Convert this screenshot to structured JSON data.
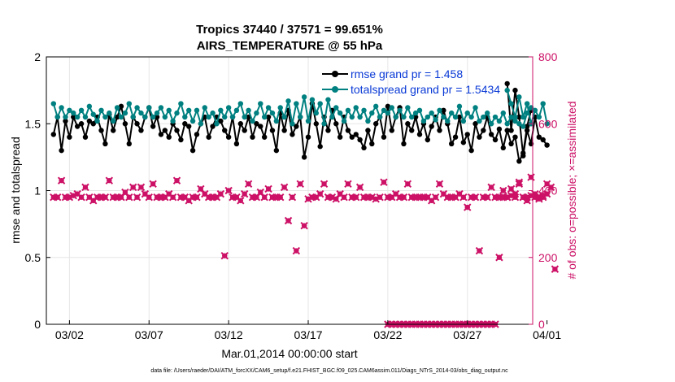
{
  "chart_data": {
    "type": "line",
    "title": "Tropics 37440 / 37571 = 99.651%",
    "subtitle": "AIRS_TEMPERATURE @ 55 hPa",
    "xlabel": "Mar.01,2014 00:00:00 start",
    "ylabel": "rmse and totalspread",
    "y2label": "# of obs: o=possible; ×=assimilated",
    "ylim": [
      0,
      2
    ],
    "y2lim": [
      0,
      800
    ],
    "xlim": [
      0.55,
      31.1
    ],
    "yticks": [
      0,
      0.5,
      1,
      1.5,
      2
    ],
    "yticklabels": [
      "0",
      "0.5",
      "1",
      "1.5",
      "2"
    ],
    "y2ticks": [
      0,
      200,
      400,
      600,
      800
    ],
    "y2ticklabels": [
      "0",
      "200",
      "400",
      "600",
      "800"
    ],
    "xticks": [
      2,
      7,
      12,
      17,
      22,
      27,
      32
    ],
    "xticklabels": [
      "03/02",
      "03/07",
      "03/12",
      "03/17",
      "03/22",
      "03/27",
      "04/01"
    ],
    "grid": true,
    "legend_position": "top-right",
    "footer": "data file: /Users/raeder/DAI/ATM_forcXX/CAM6_setup/f.e21.FHIST_BGC.f09_025.CAM6assim.011/Diags_NTrS_2014-03/obs_diag_output.nc",
    "colors": {
      "rmse": "#000000",
      "spread": "#008080",
      "obs": "#cc1166",
      "grid": "#e6e6e6",
      "legend_text": "#0a3ad6"
    },
    "step_days": 0.25,
    "series": [
      {
        "name": "rmse grand pr = 1.458",
        "x_start": 1.0,
        "values": [
          1.42,
          1.55,
          1.3,
          1.52,
          1.4,
          1.55,
          1.48,
          1.5,
          1.4,
          1.52,
          1.5,
          1.55,
          1.45,
          1.35,
          1.57,
          1.45,
          1.55,
          1.63,
          1.5,
          1.35,
          1.55,
          1.5,
          1.45,
          1.55,
          1.62,
          1.48,
          1.55,
          1.42,
          1.45,
          1.4,
          1.5,
          1.45,
          1.38,
          1.5,
          1.48,
          1.3,
          1.42,
          1.5,
          1.55,
          1.4,
          1.48,
          1.55,
          1.52,
          1.45,
          1.4,
          1.55,
          1.35,
          1.5,
          1.45,
          1.55,
          1.4,
          1.5,
          1.48,
          1.4,
          1.55,
          1.45,
          1.3,
          1.58,
          1.45,
          1.6,
          1.42,
          1.48,
          1.55,
          1.25,
          1.4,
          1.65,
          1.5,
          1.33,
          1.55,
          1.45,
          1.6,
          1.5,
          1.4,
          1.55,
          1.45,
          1.4,
          1.42,
          1.38,
          1.32,
          1.45,
          1.35,
          1.5,
          1.55,
          1.4,
          1.63,
          1.45,
          1.55,
          1.62,
          1.35,
          1.5,
          1.45,
          1.55,
          1.42,
          1.5,
          1.38,
          1.48,
          1.55,
          1.45,
          1.6,
          1.5,
          1.35,
          1.4,
          1.55,
          1.36,
          1.42,
          1.3,
          1.5,
          1.4,
          1.45,
          1.55,
          1.42,
          1.38,
          1.46,
          1.32,
          1.45,
          1.35,
          1.4,
          1.22,
          1.28,
          1.48,
          1.6
        ],
        "x2_start": 29.5,
        "values2": [
          1.8,
          1.45,
          1.75,
          1.55,
          1.26,
          1.45,
          1.35,
          1.55,
          1.4,
          1.38,
          1.34
        ]
      },
      {
        "name": "totalspread grand pr = 1.5434",
        "x_start": 1.0,
        "values": [
          1.65,
          1.55,
          1.62,
          1.55,
          1.6,
          1.58,
          1.55,
          1.6,
          1.55,
          1.63,
          1.57,
          1.52,
          1.6,
          1.55,
          1.58,
          1.52,
          1.62,
          1.55,
          1.58,
          1.65,
          1.55,
          1.62,
          1.58,
          1.55,
          1.62,
          1.55,
          1.58,
          1.62,
          1.55,
          1.6,
          1.52,
          1.58,
          1.65,
          1.55,
          1.6,
          1.52,
          1.6,
          1.5,
          1.62,
          1.55,
          1.58,
          1.5,
          1.6,
          1.55,
          1.62,
          1.55,
          1.6,
          1.65,
          1.55,
          1.6,
          1.52,
          1.58,
          1.65,
          1.55,
          1.62,
          1.58,
          1.52,
          1.62,
          1.55,
          1.67,
          1.5,
          1.65,
          1.55,
          1.7,
          1.52,
          1.68,
          1.58,
          1.65,
          1.5,
          1.68,
          1.55,
          1.62,
          1.58,
          1.52,
          1.6,
          1.55,
          1.62,
          1.55,
          1.6,
          1.52,
          1.58,
          1.63,
          1.55,
          1.6,
          1.58,
          1.62,
          1.55,
          1.6,
          1.55,
          1.62,
          1.55,
          1.58,
          1.6,
          1.52,
          1.55,
          1.58,
          1.53,
          1.6,
          1.55,
          1.52,
          1.58,
          1.55,
          1.63,
          1.52,
          1.58,
          1.55,
          1.62,
          1.52,
          1.55,
          1.58,
          1.5,
          1.55,
          1.52,
          1.58,
          1.5,
          1.55,
          1.52,
          1.5,
          1.48,
          1.58,
          1.62
        ],
        "x2_start": 29.5,
        "values2": [
          1.75,
          1.65,
          1.55,
          1.7,
          1.55,
          1.65,
          1.5,
          1.6,
          1.55,
          1.65,
          1.5
        ]
      },
      {
        "name": "# of obs",
        "axis": "right",
        "x_start": 1.0,
        "values": [
          380,
          380,
          430,
          380,
          380,
          385,
          390,
          380,
          410,
          380,
          370,
          380,
          380,
          380,
          430,
          380,
          380,
          380,
          395,
          380,
          410,
          380,
          410,
          390,
          380,
          420,
          380,
          380,
          380,
          390,
          380,
          430,
          380,
          380,
          370,
          380,
          380,
          405,
          390,
          380,
          380,
          380,
          390,
          205,
          400,
          380,
          380,
          370,
          390,
          420,
          380,
          380,
          395,
          380,
          405,
          380,
          380,
          380,
          410,
          310,
          380,
          220,
          420,
          295,
          375,
          380,
          380,
          390,
          420,
          380,
          380,
          375,
          390,
          380,
          420,
          380,
          380,
          410,
          380,
          380,
          380,
          375,
          380,
          425,
          380,
          380,
          390,
          380,
          380,
          420,
          380,
          380,
          380,
          380,
          380,
          370,
          380,
          420,
          390,
          380,
          380,
          380,
          390,
          380,
          350,
          380,
          380,
          220,
          380,
          380,
          410,
          380,
          380,
          400,
          380,
          405,
          380,
          420,
          380,
          380,
          440,
          380,
          375,
          380,
          390,
          410,
          165
        ],
        "x2_start": 22.0,
        "values2": [
          0,
          0,
          0,
          0,
          0,
          0,
          0,
          0,
          0,
          0,
          0,
          0,
          0,
          0,
          0,
          0,
          0,
          0,
          0,
          0,
          0,
          0,
          0,
          0,
          0,
          0,
          0,
          0,
          200,
          380,
          380,
          385,
          390,
          425,
          380,
          370,
          385,
          390,
          380,
          385,
          420
        ]
      }
    ]
  }
}
